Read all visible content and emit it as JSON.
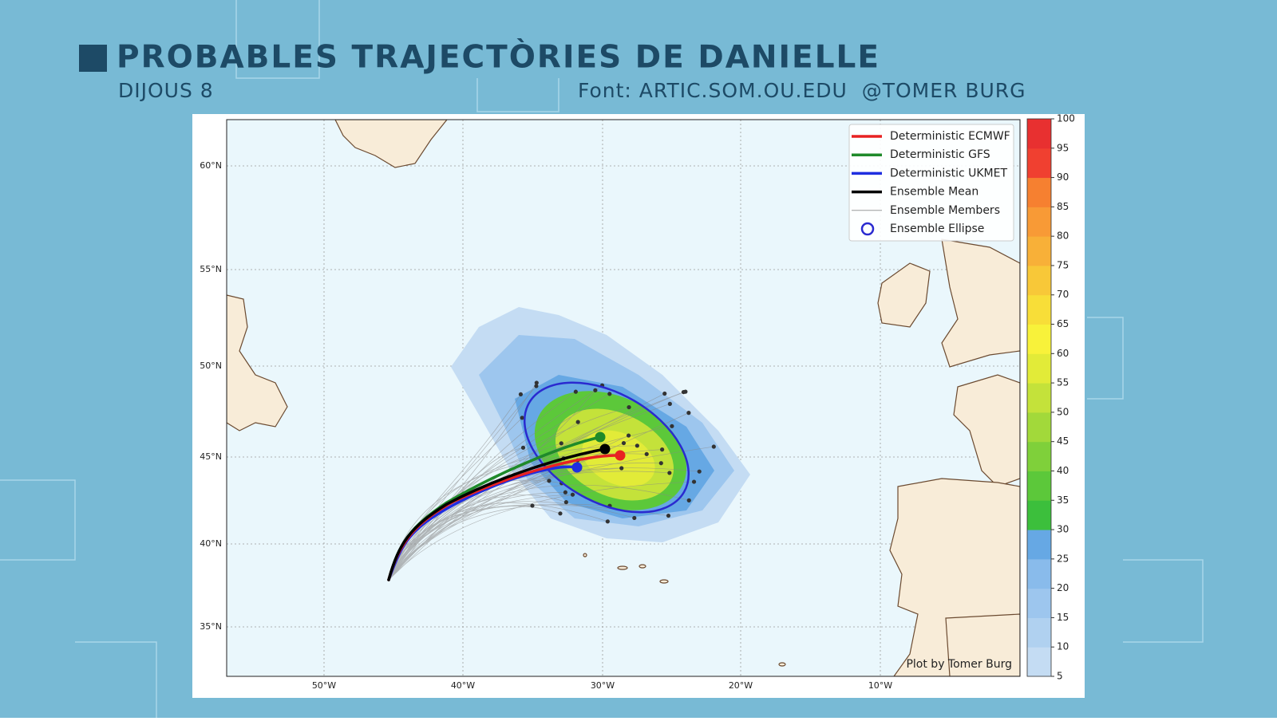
{
  "header": {
    "title": "PROBABLES TRAJECTÒRIES DE DANIELLE",
    "subtitle": "DIJOUS 8",
    "source": "Font: ARTIC.SOM.OU.EDU  @TOMER BURG"
  },
  "map": {
    "lat_labels": [
      "60°N",
      "55°N",
      "50°N",
      "45°N",
      "40°N",
      "35°N"
    ],
    "lon_labels": [
      "50°W",
      "40°W",
      "30°W",
      "20°W",
      "10°W"
    ],
    "credit": "Plot by Tomer Burg"
  },
  "legend": [
    {
      "label": "Deterministic ECMWF",
      "color": "#e82222"
    },
    {
      "label": "Deterministic GFS",
      "color": "#1f8a2a"
    },
    {
      "label": "Deterministic UKMET",
      "color": "#1f2ee0"
    },
    {
      "label": "Ensemble Mean",
      "color": "#000000"
    },
    {
      "label": "Ensemble Members",
      "color": "#9a9a9a"
    },
    {
      "label": "Ensemble Ellipse",
      "color": "#2a2ad0"
    }
  ],
  "colorbar": {
    "ticks": [
      100,
      95,
      90,
      85,
      80,
      75,
      70,
      65,
      60,
      55,
      50,
      45,
      40,
      35,
      30,
      25,
      20,
      15,
      10,
      5
    ],
    "colors": [
      "#c4dcf3",
      "#b0d1f0",
      "#9dc6ee",
      "#89bbeb",
      "#66a8e4",
      "#3cbf3c",
      "#5cc83a",
      "#7fd03a",
      "#a2d93a",
      "#c4e23a",
      "#e2eb38",
      "#f8f23a",
      "#f8de38",
      "#f8c838",
      "#f8b038",
      "#f89a36",
      "#f68030",
      "#f04030",
      "#e83030"
    ]
  }
}
